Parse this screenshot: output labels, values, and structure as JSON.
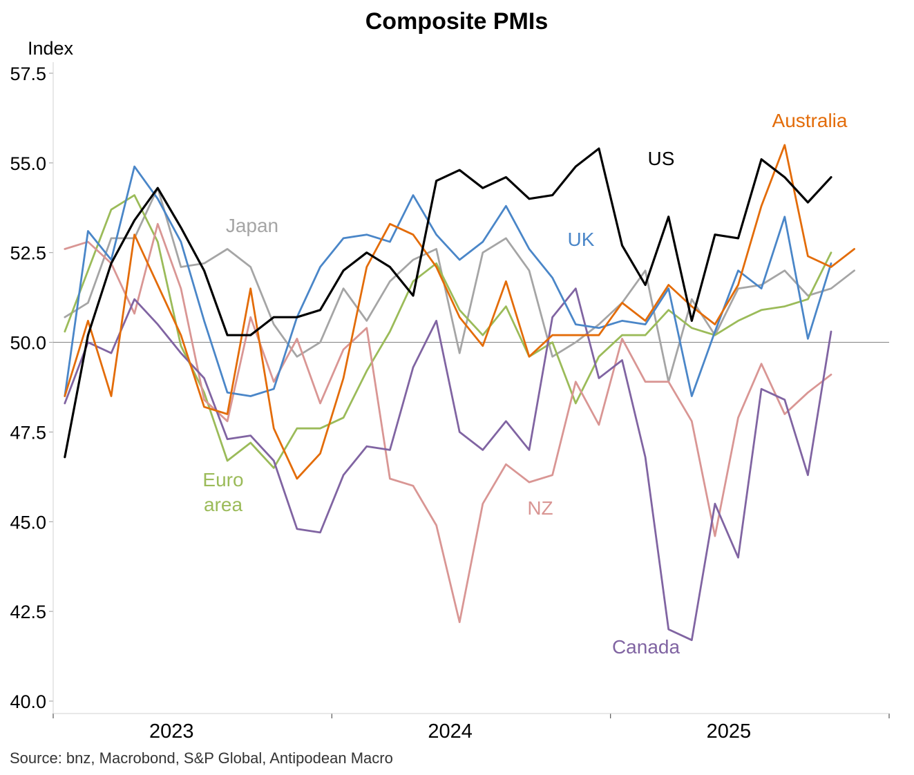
{
  "chart_data": {
    "type": "line",
    "title": "Composite PMIs",
    "ylabel": "Index",
    "ylim": [
      40.0,
      57.5
    ],
    "yticks": [
      40.0,
      42.5,
      45.0,
      47.5,
      50.0,
      52.5,
      55.0,
      57.5
    ],
    "ytick_labels": [
      "40.0",
      "42.5",
      "45.0",
      "47.5",
      "50.0",
      "52.5",
      "55.0",
      "57.5"
    ],
    "reference_line": 50.0,
    "x_start": "2022-09",
    "x_month_range": [
      -0.5,
      35.5
    ],
    "year_labels": [
      {
        "label": "2023",
        "month_index": 4
      },
      {
        "label": "2024",
        "month_index": 16
      },
      {
        "label": "2025",
        "month_index": 28
      }
    ],
    "year_boundaries": [
      -0.5,
      11.5,
      23.5,
      35.5
    ],
    "source": "Source: bnz, Macrobond, S&P Global, Antipodean Macro",
    "series": [
      {
        "name": "Japan",
        "label": "Japan",
        "color": "#a5a5a5",
        "values": [
          50.7,
          51.1,
          52.9,
          52.9,
          54.3,
          52.1,
          52.2,
          52.6,
          52.1,
          50.5,
          49.6,
          50.0,
          51.5,
          50.6,
          51.7,
          52.3,
          52.6,
          49.7,
          52.5,
          52.9,
          52.0,
          49.6,
          50.0,
          50.5,
          51.1,
          52.0,
          48.9,
          51.2,
          50.2,
          51.5,
          51.6,
          52.0,
          51.3,
          51.5,
          52.0
        ]
      },
      {
        "name": "Euro area",
        "label": "Euro\narea",
        "color": "#9bbb59",
        "values": [
          50.3,
          52.0,
          53.7,
          54.1,
          52.8,
          49.9,
          48.6,
          46.7,
          47.2,
          46.5,
          47.6,
          47.6,
          47.9,
          49.2,
          50.3,
          51.7,
          52.2,
          50.9,
          50.2,
          51.0,
          49.6,
          50.0,
          48.3,
          49.6,
          50.2,
          50.2,
          50.9,
          50.4,
          50.2,
          50.6,
          50.9,
          51.0,
          51.2,
          52.5
        ]
      },
      {
        "name": "NZ",
        "label": "NZ",
        "color": "#d99694",
        "values": [
          52.6,
          52.8,
          52.2,
          50.8,
          53.3,
          51.5,
          48.4,
          47.8,
          50.7,
          48.9,
          50.1,
          48.3,
          49.8,
          50.4,
          46.2,
          46.0,
          44.9,
          42.2,
          45.5,
          46.6,
          46.1,
          46.3,
          48.9,
          47.7,
          50.1,
          48.9,
          48.9,
          47.8,
          44.6,
          47.9,
          49.4,
          48.0,
          48.6,
          49.1
        ]
      },
      {
        "name": "Canada",
        "label": "Canada",
        "color": "#8064a2",
        "values": [
          48.3,
          50.0,
          49.7,
          51.2,
          50.5,
          49.7,
          49.0,
          47.3,
          47.4,
          46.7,
          44.8,
          44.7,
          46.3,
          47.1,
          47.0,
          49.3,
          50.6,
          47.5,
          47.0,
          47.8,
          47.0,
          50.7,
          51.5,
          49.0,
          49.5,
          46.8,
          42.0,
          41.7,
          45.5,
          44.0,
          48.7,
          48.4,
          46.3,
          50.3
        ]
      },
      {
        "name": "UK",
        "label": "UK",
        "color": "#4a86c8",
        "values": [
          48.5,
          53.1,
          52.3,
          54.9,
          54.0,
          52.8,
          50.6,
          48.6,
          48.5,
          48.7,
          50.7,
          52.1,
          52.9,
          53.0,
          52.8,
          54.1,
          53.0,
          52.3,
          52.8,
          53.8,
          52.6,
          51.8,
          50.5,
          50.4,
          50.6,
          50.5,
          51.5,
          48.5,
          50.3,
          52.0,
          51.5,
          53.5,
          50.1,
          52.2
        ]
      },
      {
        "name": "Australia",
        "label": "Australia",
        "color": "#e36c09",
        "values": [
          48.5,
          50.6,
          48.5,
          53.0,
          51.6,
          50.2,
          48.2,
          48.0,
          51.5,
          47.6,
          46.2,
          46.9,
          49.0,
          52.1,
          53.3,
          53.0,
          52.1,
          50.7,
          49.9,
          51.7,
          49.6,
          50.2,
          50.2,
          50.2,
          51.1,
          50.6,
          51.6,
          51.0,
          50.5,
          51.6,
          53.8,
          55.5,
          52.4,
          52.1,
          52.6
        ]
      },
      {
        "name": "US",
        "label": "US",
        "color": "#000000",
        "values": [
          46.8,
          50.2,
          52.2,
          53.4,
          54.3,
          53.2,
          52.0,
          50.2,
          50.2,
          50.7,
          50.7,
          50.9,
          52.0,
          52.5,
          52.1,
          51.3,
          54.5,
          54.8,
          54.3,
          54.6,
          54.0,
          54.1,
          54.9,
          55.4,
          52.7,
          51.6,
          53.5,
          50.6,
          53.0,
          52.9,
          55.1,
          54.6,
          53.9,
          54.6
        ]
      }
    ]
  }
}
